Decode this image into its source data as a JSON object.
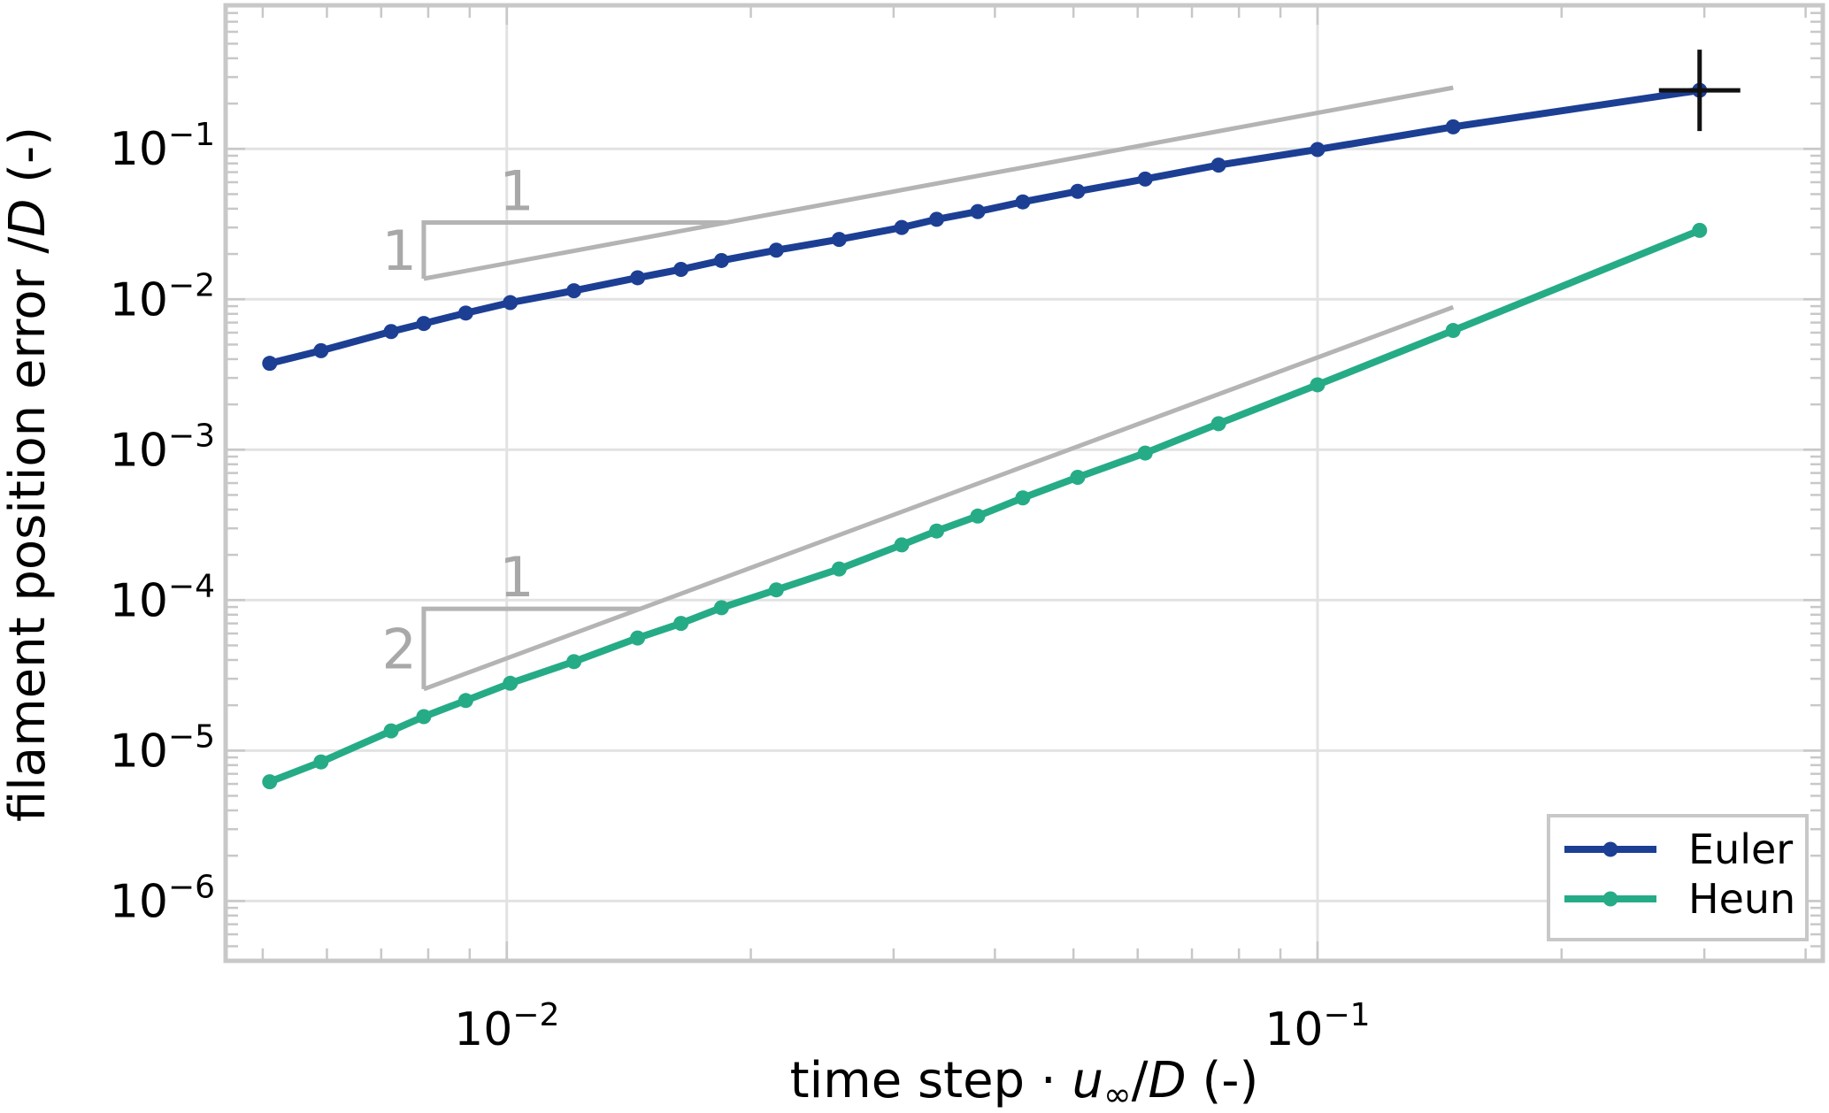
{
  "chart_data": {
    "type": "line",
    "xscale": "log",
    "yscale": "log",
    "xlabel_parts": [
      "time step · ",
      "u",
      "∞",
      "/",
      "D",
      " (-)"
    ],
    "ylabel_parts": [
      "filament position error /",
      "D",
      " (-)"
    ],
    "xlim": [
      0.0045,
      0.42
    ],
    "ylim": [
      4e-07,
      0.9
    ],
    "xticks": [
      {
        "value": 0.01,
        "base": "10",
        "exp": "−2"
      },
      {
        "value": 0.1,
        "base": "10",
        "exp": "−1"
      }
    ],
    "yticks": [
      {
        "value": 0.1,
        "base": "10",
        "exp": "−1"
      },
      {
        "value": 0.01,
        "base": "10",
        "exp": "−2"
      },
      {
        "value": 0.001,
        "base": "10",
        "exp": "−3"
      },
      {
        "value": 0.0001,
        "base": "10",
        "exp": "−4"
      },
      {
        "value": 1e-05,
        "base": "10",
        "exp": "−5"
      },
      {
        "value": 1e-06,
        "base": "10",
        "exp": "−6"
      }
    ],
    "grid": true,
    "legend_position": "lower-right",
    "series": [
      {
        "name": "Euler",
        "color": "#1c3f94",
        "x": [
          0.0051,
          0.0059,
          0.0072,
          0.0079,
          0.0089,
          0.0101,
          0.0121,
          0.0145,
          0.0164,
          0.0184,
          0.0215,
          0.0257,
          0.0307,
          0.0339,
          0.0381,
          0.0433,
          0.0506,
          0.0613,
          0.0755,
          0.1,
          0.147,
          0.296
        ],
        "y": [
          0.00375,
          0.00455,
          0.0061,
          0.0069,
          0.0081,
          0.0095,
          0.0114,
          0.0139,
          0.0158,
          0.0181,
          0.0212,
          0.025,
          0.03,
          0.034,
          0.0383,
          0.0444,
          0.0522,
          0.063,
          0.078,
          0.099,
          0.14,
          0.245
        ]
      },
      {
        "name": "Heun",
        "color": "#26ab87",
        "x": [
          0.0051,
          0.0059,
          0.0072,
          0.0079,
          0.0089,
          0.0101,
          0.0121,
          0.0145,
          0.0164,
          0.0184,
          0.0215,
          0.0257,
          0.0307,
          0.0339,
          0.0381,
          0.0433,
          0.0506,
          0.0613,
          0.0755,
          0.1,
          0.147,
          0.296
        ],
        "y": [
          6.2e-06,
          8.4e-06,
          1.35e-05,
          1.68e-05,
          2.15e-05,
          2.8e-05,
          3.9e-05,
          5.6e-05,
          7e-05,
          8.9e-05,
          0.000117,
          0.000161,
          0.000233,
          0.000288,
          0.000362,
          0.000478,
          0.000655,
          0.00095,
          0.00149,
          0.0027,
          0.0062,
          0.0287
        ]
      }
    ],
    "reference_lines": [
      {
        "slope": 1,
        "x": [
          0.0079,
          0.147
        ],
        "y": [
          0.0137,
          0.255
        ],
        "color": "#b4b4b4"
      },
      {
        "slope": 2,
        "x": [
          0.0079,
          0.147
        ],
        "y": [
          2.56e-05,
          0.00886
        ],
        "color": "#b4b4b4"
      }
    ],
    "slope_triangles": [
      {
        "run_label": "1",
        "rise_label": "1",
        "x0": 0.0079,
        "x1": 0.0187,
        "y_low": 0.0137,
        "y_high": 0.0324
      },
      {
        "run_label": "1",
        "rise_label": "2",
        "x0": 0.0079,
        "x1": 0.0146,
        "y_low": 2.56e-05,
        "y_high": 8.76e-05
      }
    ],
    "marker": {
      "type": "crosshair",
      "x": 0.296,
      "y": 0.245,
      "color": "#111111"
    }
  }
}
